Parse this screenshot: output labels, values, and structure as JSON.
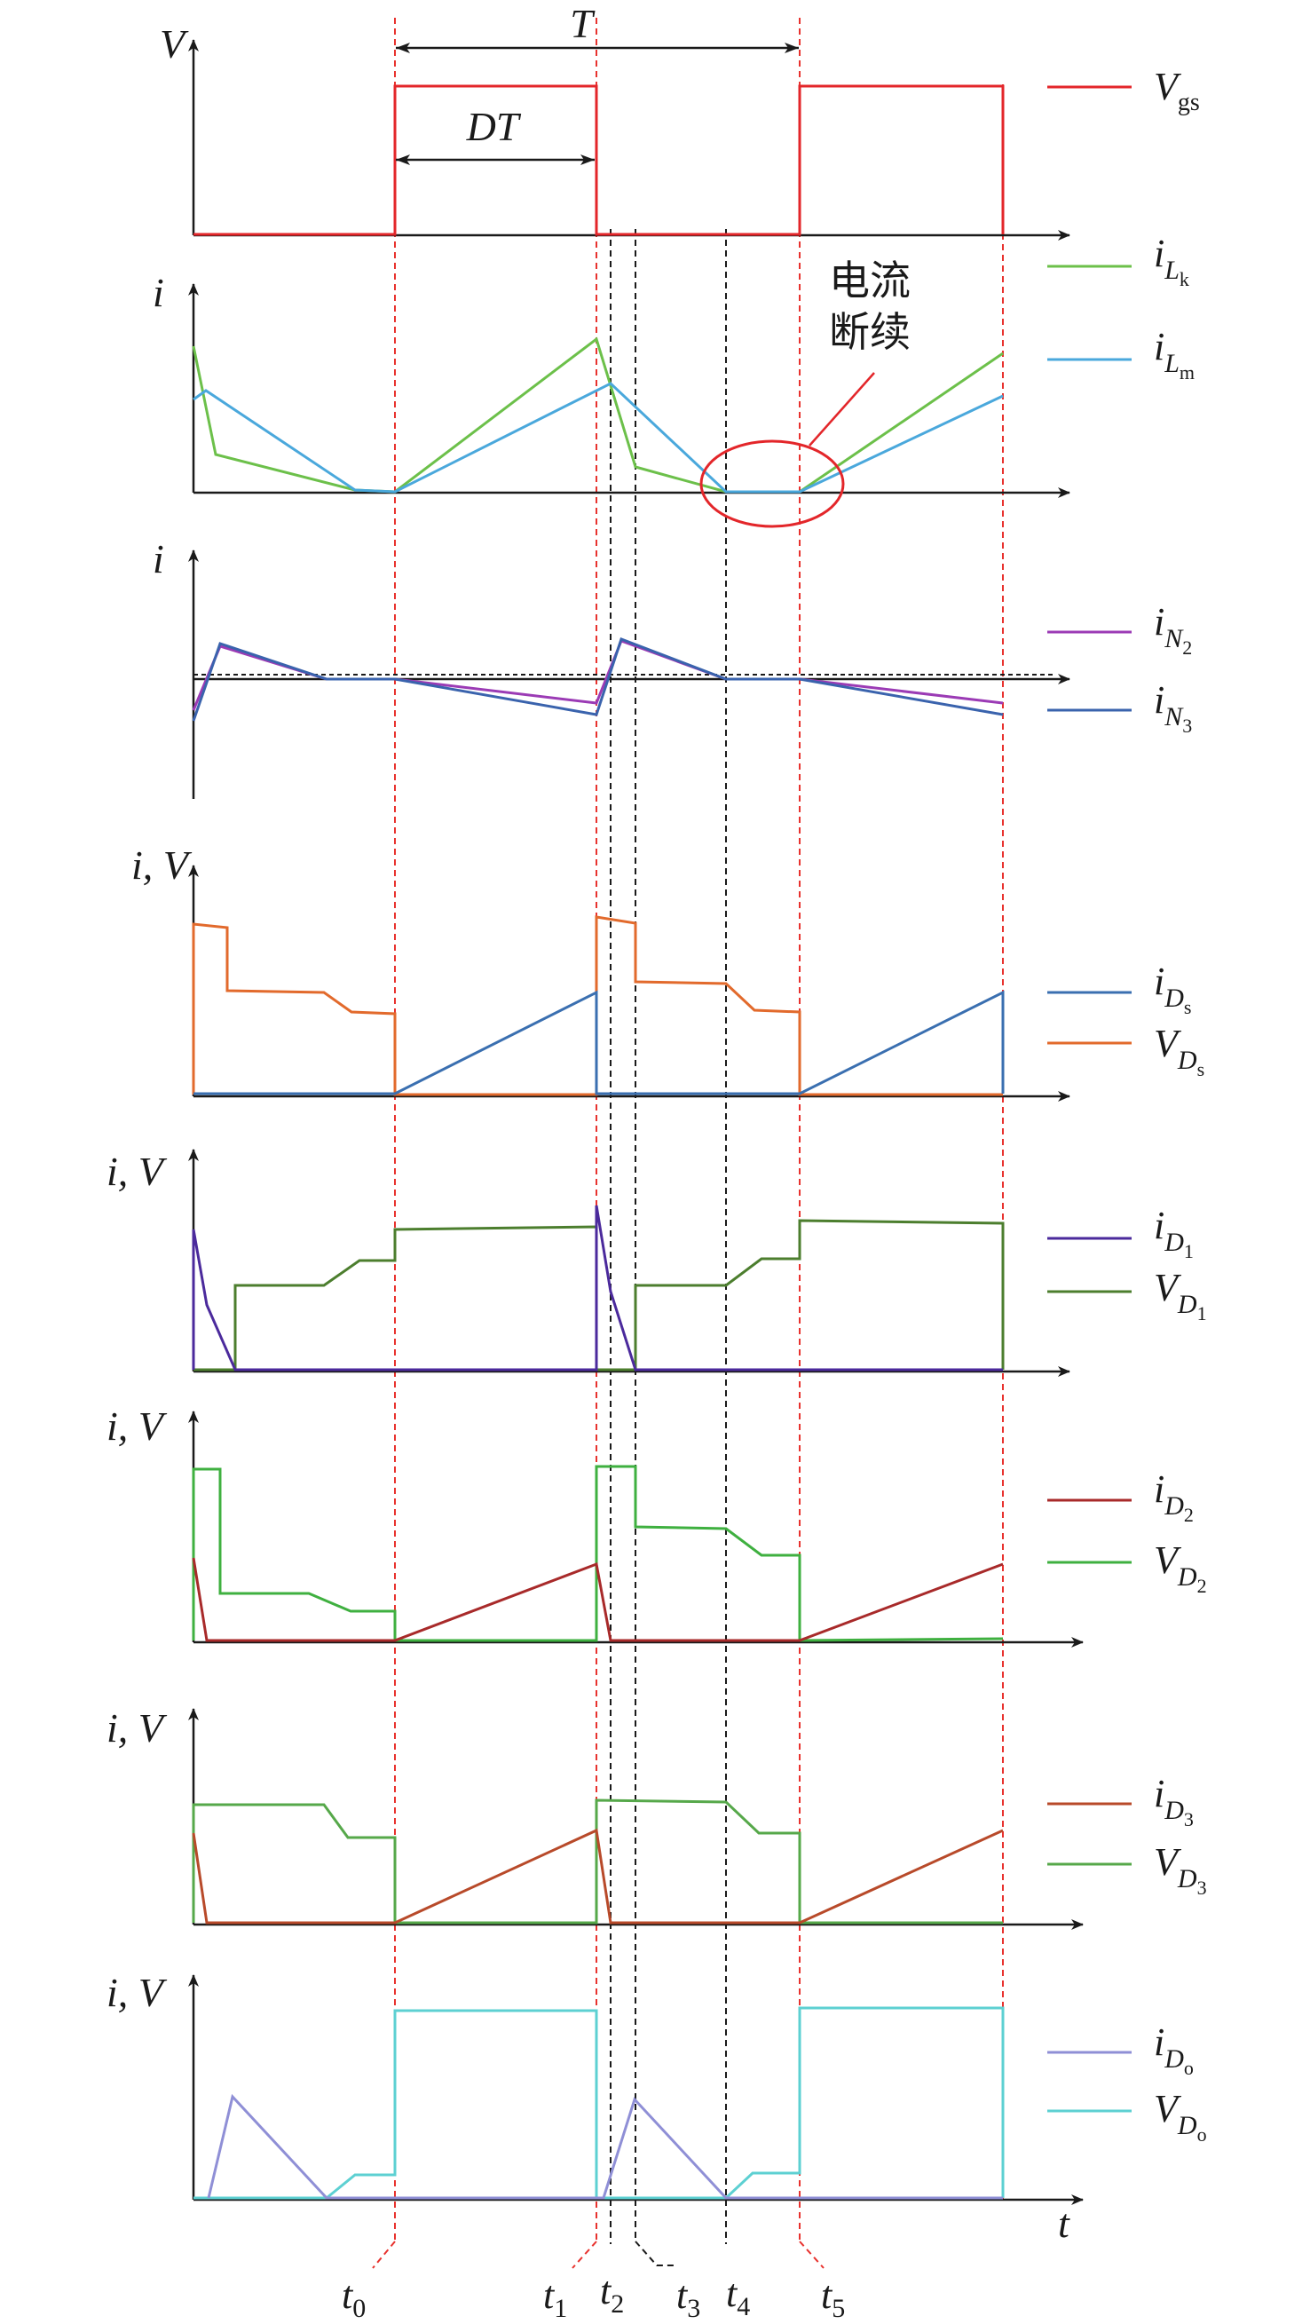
{
  "colors": {
    "axis": "#1a1a1a",
    "guide_red": "#e8322e",
    "guide_black": "#1a1a1a",
    "Vgs": "#e3262a",
    "iLk": "#6cc04a",
    "iLm": "#4aa8dc",
    "iN2": "#9b3bb5",
    "iN3": "#3a63ad",
    "iDs": "#3a6fb0",
    "VDs": "#e26a2c",
    "iD1": "#4b2a9c",
    "VD1": "#4c7e2e",
    "iD2": "#a82a2a",
    "VD2": "#3fb040",
    "iD3": "#b84a2a",
    "VD3": "#56a84a",
    "iDo": "#8f8fd6",
    "VDo": "#5dd0d2"
  },
  "annotations": {
    "period": "T",
    "duty": "DT",
    "dcm_label_line1": "电流",
    "dcm_label_line2": "断续"
  },
  "time_axis": {
    "label": "t",
    "markers": [
      {
        "main": "t",
        "sub": "0"
      },
      {
        "main": "t",
        "sub": "1"
      },
      {
        "main": "t",
        "sub": "2"
      },
      {
        "main": "t",
        "sub": "3"
      },
      {
        "main": "t",
        "sub": "4"
      },
      {
        "main": "t",
        "sub": "5"
      }
    ]
  },
  "panels": [
    {
      "ylabel": "V",
      "legend": [
        {
          "main": "V",
          "sub": "gs",
          "subsub": "",
          "color_key": "Vgs"
        }
      ]
    },
    {
      "ylabel": "i",
      "legend": [
        {
          "main": "i",
          "sub": "L",
          "subsub": "k",
          "color_key": "iLk"
        },
        {
          "main": "i",
          "sub": "L",
          "subsub": "m",
          "color_key": "iLm"
        }
      ]
    },
    {
      "ylabel": "i",
      "legend": [
        {
          "main": "i",
          "sub": "N",
          "subsub": "2",
          "color_key": "iN2"
        },
        {
          "main": "i",
          "sub": "N",
          "subsub": "3",
          "color_key": "iN3"
        }
      ]
    },
    {
      "ylabel": "i, V",
      "legend": [
        {
          "main": "i",
          "sub": "D",
          "subsub": "s",
          "color_key": "iDs"
        },
        {
          "main": "V",
          "sub": "D",
          "subsub": "s",
          "color_key": "VDs"
        }
      ]
    },
    {
      "ylabel": "i, V",
      "legend": [
        {
          "main": "i",
          "sub": "D",
          "subsub": "1",
          "color_key": "iD1"
        },
        {
          "main": "V",
          "sub": "D",
          "subsub": "1",
          "color_key": "VD1"
        }
      ]
    },
    {
      "ylabel": "i, V",
      "legend": [
        {
          "main": "i",
          "sub": "D",
          "subsub": "2",
          "color_key": "iD2"
        },
        {
          "main": "V",
          "sub": "D",
          "subsub": "2",
          "color_key": "VD2"
        }
      ]
    },
    {
      "ylabel": "i, V",
      "legend": [
        {
          "main": "i",
          "sub": "D",
          "subsub": "3",
          "color_key": "iD3"
        },
        {
          "main": "V",
          "sub": "D",
          "subsub": "3",
          "color_key": "VD3"
        }
      ]
    },
    {
      "ylabel": "i, V",
      "legend": [
        {
          "main": "i",
          "sub": "D",
          "subsub": "o",
          "color_key": "iDo"
        },
        {
          "main": "V",
          "sub": "D",
          "subsub": "o",
          "color_key": "VDo"
        }
      ]
    }
  ]
}
